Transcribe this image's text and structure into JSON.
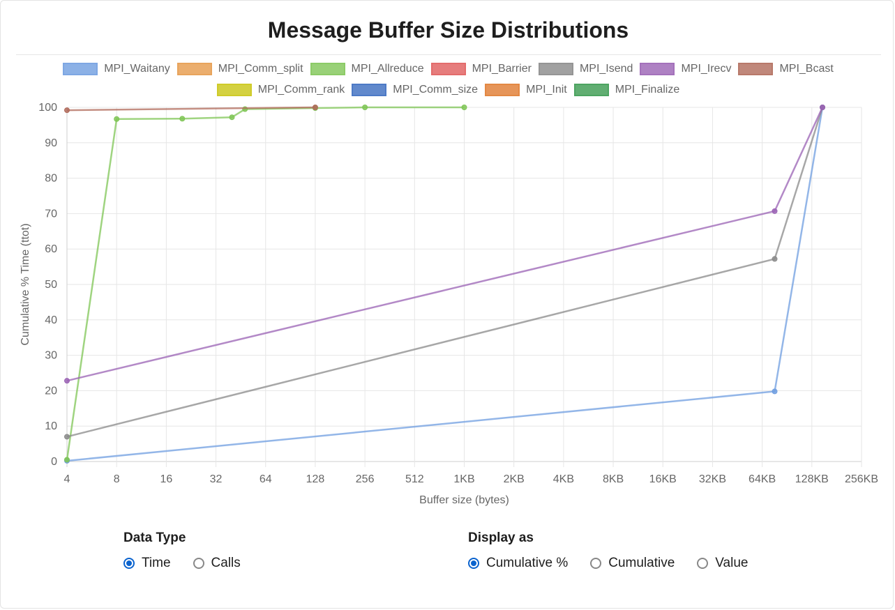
{
  "title": "Message Buffer Size Distributions",
  "chart_data": {
    "type": "line",
    "xscale": "log2",
    "x_ticks": [
      "4",
      "8",
      "16",
      "32",
      "64",
      "128",
      "256",
      "512",
      "1KB",
      "2KB",
      "4KB",
      "8KB",
      "16KB",
      "32KB",
      "64KB",
      "128KB",
      "256KB"
    ],
    "xlabel": "Buffer size (bytes)",
    "ylabel": "Cumulative % Time (ttot)",
    "ylim": [
      0,
      100
    ],
    "y_ticks": [
      0,
      10,
      20,
      30,
      40,
      50,
      60,
      70,
      80,
      90,
      100
    ],
    "grid": true,
    "legend_position": "top",
    "series": [
      {
        "name": "MPI_Waitany",
        "color": "#6f9ee0",
        "points": [
          [
            4,
            0.2
          ],
          [
            78000,
            19.8
          ],
          [
            152000,
            100
          ]
        ]
      },
      {
        "name": "MPI_Comm_split",
        "color": "#e69a4a",
        "points": []
      },
      {
        "name": "MPI_Allreduce",
        "color": "#7fc556",
        "points": [
          [
            4,
            0.5
          ],
          [
            8,
            96.7
          ],
          [
            20,
            96.8
          ],
          [
            40,
            97.2
          ],
          [
            48,
            99.5
          ],
          [
            128,
            99.8
          ],
          [
            256,
            100
          ],
          [
            1024,
            100
          ]
        ]
      },
      {
        "name": "MPI_Barrier",
        "color": "#e05c5c",
        "points": []
      },
      {
        "name": "MPI_Isend",
        "color": "#8a8a8a",
        "points": [
          [
            4,
            7
          ],
          [
            78000,
            57.2
          ],
          [
            152000,
            100
          ]
        ]
      },
      {
        "name": "MPI_Irecv",
        "color": "#9a62b4",
        "points": [
          [
            4,
            22.8
          ],
          [
            78000,
            70.7
          ],
          [
            152000,
            100
          ]
        ]
      },
      {
        "name": "MPI_Bcast",
        "color": "#b06a5a",
        "points": [
          [
            4,
            99.2
          ],
          [
            128,
            100
          ]
        ]
      },
      {
        "name": "MPI_Comm_rank",
        "color": "#c9c512",
        "points": []
      },
      {
        "name": "MPI_Comm_size",
        "color": "#3a6bbf",
        "points": []
      },
      {
        "name": "MPI_Init",
        "color": "#e07b30",
        "points": []
      },
      {
        "name": "MPI_Finalize",
        "color": "#3a9a4f",
        "points": []
      }
    ]
  },
  "controls": {
    "data_type": {
      "title": "Data Type",
      "options": [
        {
          "label": "Time",
          "checked": true
        },
        {
          "label": "Calls",
          "checked": false
        }
      ]
    },
    "display_as": {
      "title": "Display as",
      "options": [
        {
          "label": "Cumulative %",
          "checked": true
        },
        {
          "label": "Cumulative",
          "checked": false
        },
        {
          "label": "Value",
          "checked": false
        }
      ]
    }
  }
}
